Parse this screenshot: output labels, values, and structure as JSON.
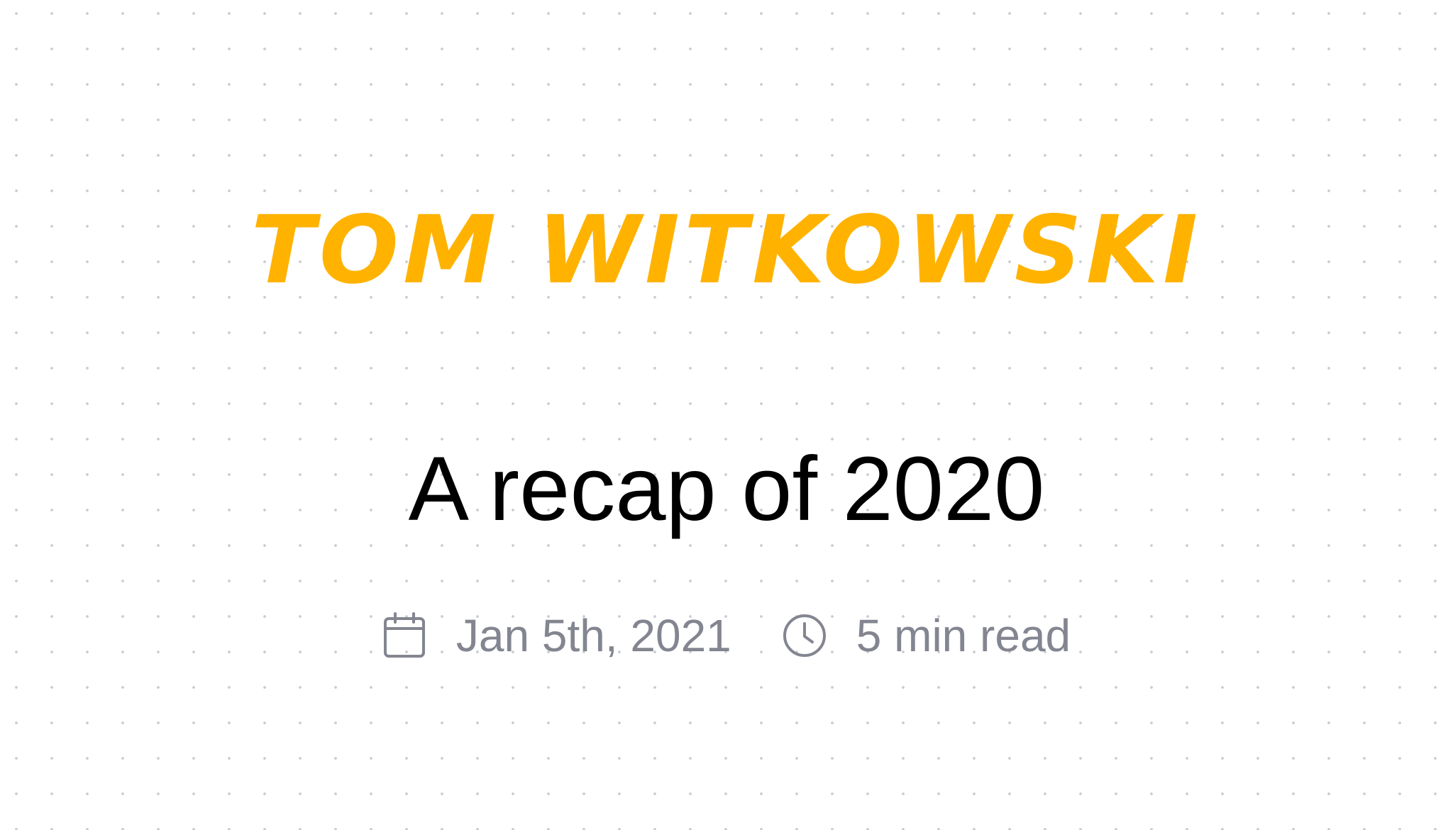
{
  "site": {
    "author_name": "Tom Witkowski",
    "brand_color": "#ffb300"
  },
  "post": {
    "title": "A recap of 2020",
    "published_date": "Jan 5th, 2021",
    "read_time": "5 min read",
    "title_color": "#000000",
    "meta_color": "#838590"
  },
  "icons": {
    "date": "calendar-icon",
    "read_time": "clock-icon"
  }
}
